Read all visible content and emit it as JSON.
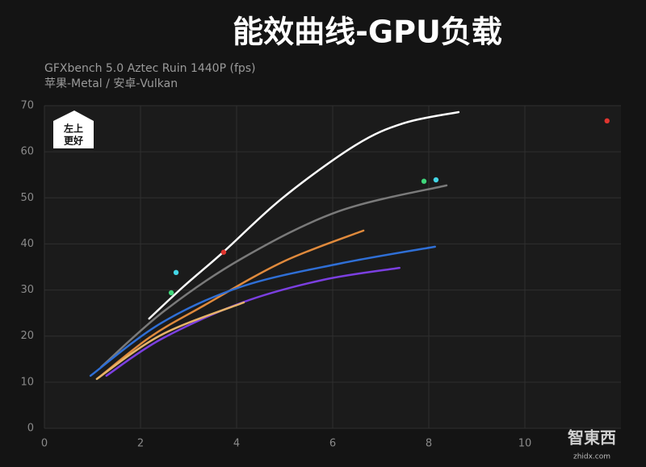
{
  "chart_data": {
    "type": "line",
    "title": "能效曲线-GPU负载",
    "subtitle": [
      "GFXbench 5.0 Aztec Ruin 1440P (fps)",
      "苹果-Metal / 安卓-Vulkan"
    ],
    "badge": [
      "左上",
      "更好"
    ],
    "watermark": [
      "智東西",
      "zhidx.com"
    ],
    "xlim": [
      0,
      12
    ],
    "xticks": [
      0,
      2,
      4,
      6,
      8,
      10
    ],
    "ylim": [
      0,
      70
    ],
    "yticks": [
      0,
      10,
      20,
      30,
      40,
      50,
      60,
      70
    ],
    "grid": true,
    "series": [
      {
        "type": "line",
        "color": "#ffffff",
        "x": [
          2.18,
          2.9,
          3.73,
          4.96,
          6.47,
          7.48,
          8.62
        ],
        "values": [
          23.8,
          30.8,
          38.3,
          50.0,
          61.4,
          66.2,
          68.6
        ]
      },
      {
        "type": "line",
        "color": "#7a7a7a",
        "x": [
          1.18,
          2.5,
          4.12,
          6.13,
          8.37
        ],
        "values": [
          13.3,
          25.5,
          36.9,
          47.1,
          52.7
        ]
      },
      {
        "type": "line",
        "color": "#e08a3c",
        "x": [
          1.13,
          2.2,
          3.28,
          4.96,
          6.64
        ],
        "values": [
          11.0,
          19.8,
          26.4,
          36.1,
          42.9
        ]
      },
      {
        "type": "line",
        "color": "#2f6fd6",
        "x": [
          0.96,
          2.44,
          4.12,
          6.13,
          8.13
        ],
        "values": [
          11.4,
          22.9,
          30.8,
          35.7,
          39.4
        ]
      },
      {
        "type": "line",
        "color": "#7b3fe0",
        "x": [
          1.29,
          2.44,
          4.12,
          5.8,
          7.39
        ],
        "values": [
          11.4,
          19.4,
          27.3,
          32.2,
          34.8
        ]
      },
      {
        "type": "line",
        "color": "#e6b469",
        "x": [
          1.09,
          2.44,
          4.15
        ],
        "values": [
          10.7,
          20.3,
          27.3
        ]
      },
      {
        "type": "scatter",
        "color": "#43d6e6",
        "x": [
          2.74,
          8.15
        ],
        "values": [
          33.8,
          53.9
        ]
      },
      {
        "type": "scatter",
        "color": "#3fd67a",
        "x": [
          2.64,
          7.9
        ],
        "values": [
          29.4,
          53.6
        ]
      },
      {
        "type": "scatter",
        "color": "#e0352f",
        "x": [
          3.73,
          11.71
        ],
        "values": [
          38.2,
          66.7
        ]
      }
    ]
  }
}
